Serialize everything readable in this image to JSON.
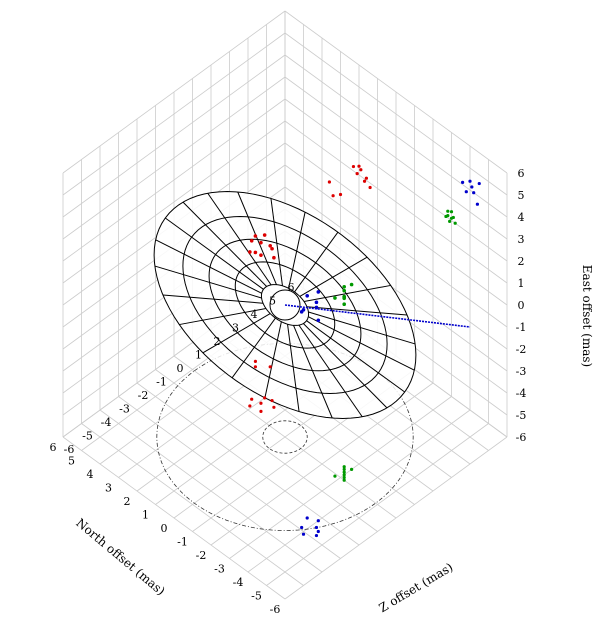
{
  "chart_data": {
    "type": "scatter",
    "subtype": "3d-scatter-with-ellipsoid-wireframe",
    "title": "",
    "axes": {
      "north": {
        "label": "North offset (mas)",
        "range": [
          -6,
          6
        ],
        "ticks": [
          "-6",
          "-5",
          "-4",
          "-3",
          "-2",
          "-1",
          "0",
          "1",
          "2",
          "3",
          "4",
          "5",
          "6"
        ]
      },
      "z": {
        "label": "Z offset (mas)",
        "range": [
          -6,
          6
        ],
        "ticks": [
          "-6",
          "-5",
          "-4",
          "-3",
          "-2",
          "-1",
          "0",
          "1",
          "2",
          "3",
          "4",
          "5",
          "6"
        ]
      },
      "east": {
        "label": "East offset (mas)",
        "range": [
          -6,
          6
        ],
        "ticks": [
          "-6",
          "-5",
          "-4",
          "-3",
          "-2",
          "-1",
          "0",
          "1",
          "2",
          "3",
          "4",
          "5",
          "6"
        ]
      }
    },
    "grid": true,
    "colors": {
      "blue": "#0000cc",
      "green": "#009900",
      "red": "#dd0000",
      "wire": "#000000",
      "grid": "#cccccc"
    },
    "ellipsoid": {
      "center": [
        0,
        0,
        0
      ],
      "description": "wireframe ellipsoid elongated along the line of sight"
    },
    "line_of_sight": {
      "from": [
        0,
        0,
        0
      ],
      "to": [
        -5,
        5,
        -1
      ],
      "color": "#0000cc"
    },
    "series": [
      {
        "color": "blue",
        "points": [
          [
            -4.5,
            -2.8,
            4.6
          ],
          [
            -4.2,
            -2.5,
            4.0
          ],
          [
            -3.8,
            -2.9,
            3.8
          ],
          [
            -4.0,
            -2.2,
            4.4
          ],
          [
            -4.4,
            -2.6,
            3.6
          ],
          [
            -3.6,
            -2.4,
            4.1
          ],
          [
            -4.1,
            -3.1,
            4.2
          ]
        ]
      },
      {
        "color": "green",
        "points": [
          [
            -3.0,
            0.2,
            2.1
          ],
          [
            -2.8,
            0.4,
            2.3
          ],
          [
            -3.2,
            0.0,
            2.0
          ],
          [
            -2.9,
            0.3,
            1.9
          ],
          [
            -3.1,
            0.1,
            2.2
          ],
          [
            -2.7,
            0.5,
            2.0
          ],
          [
            -3.0,
            0.6,
            2.4
          ],
          [
            -2.8,
            -0.1,
            2.1
          ]
        ]
      },
      {
        "color": "red",
        "points": [
          [
            1.6,
            0.3,
            1.1
          ],
          [
            1.9,
            0.6,
            1.3
          ],
          [
            1.4,
            0.8,
            0.8
          ],
          [
            2.1,
            0.2,
            1.0
          ],
          [
            2.3,
            0.5,
            1.2
          ],
          [
            1.7,
            1.0,
            0.9
          ],
          [
            2.0,
            0.9,
            1.4
          ],
          [
            3.4,
            1.8,
            -0.8
          ],
          [
            3.0,
            2.2,
            -0.5
          ],
          [
            3.6,
            2.0,
            -0.3
          ]
        ]
      }
    ]
  }
}
